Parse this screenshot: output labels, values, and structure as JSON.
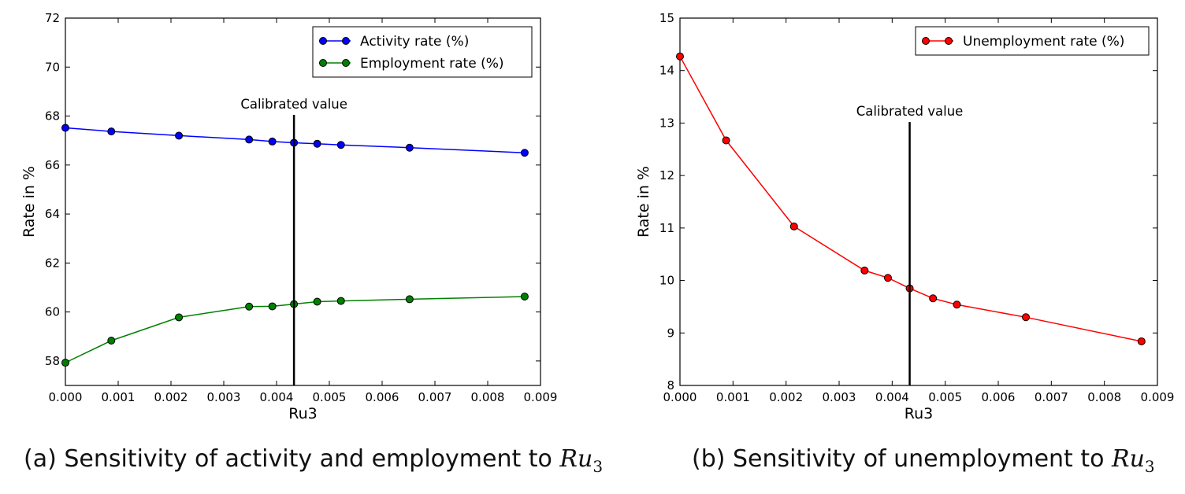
{
  "chart_data": [
    {
      "type": "line",
      "xlabel": "Ru3",
      "ylabel": "Rate in %",
      "xlim": [
        0,
        0.009
      ],
      "ylim": [
        57,
        72
      ],
      "xticks": [
        "0.000",
        "0.001",
        "0.002",
        "0.003",
        "0.004",
        "0.005",
        "0.006",
        "0.007",
        "0.008",
        "0.009"
      ],
      "yticks": [
        "58",
        "60",
        "62",
        "64",
        "66",
        "68",
        "70",
        "72"
      ],
      "legend_position": "top-right",
      "grid": false,
      "annotation": {
        "text": "Calibrated value",
        "x": 0.00433,
        "y_from": 57,
        "y_to": 68.05
      },
      "caption": {
        "prefix": "(a) Sensitivity of activity and employment to ",
        "math": "Ru",
        "sub": "3"
      },
      "series": [
        {
          "name": "Activity rate (%)",
          "color": "#0000ff",
          "x": [
            0,
            0.00087,
            0.00215,
            0.00348,
            0.00392,
            0.00433,
            0.00477,
            0.00522,
            0.00652,
            0.0087
          ],
          "values": [
            67.52,
            67.37,
            67.2,
            67.04,
            66.96,
            66.91,
            66.87,
            66.82,
            66.71,
            66.5
          ]
        },
        {
          "name": "Employment rate (%)",
          "color": "#008000",
          "x": [
            0,
            0.00087,
            0.00215,
            0.00348,
            0.00392,
            0.00433,
            0.00477,
            0.00522,
            0.00652,
            0.0087
          ],
          "values": [
            57.93,
            58.83,
            59.78,
            60.22,
            60.23,
            60.32,
            60.42,
            60.45,
            60.52,
            60.63
          ]
        }
      ]
    },
    {
      "type": "line",
      "xlabel": "Ru3",
      "ylabel": "Rate in %",
      "xlim": [
        0,
        0.009
      ],
      "ylim": [
        8,
        15
      ],
      "xticks": [
        "0.000",
        "0.001",
        "0.002",
        "0.003",
        "0.004",
        "0.005",
        "0.006",
        "0.007",
        "0.008",
        "0.009"
      ],
      "yticks": [
        "8",
        "9",
        "10",
        "11",
        "12",
        "13",
        "14",
        "15"
      ],
      "legend_position": "top-right",
      "grid": false,
      "annotation": {
        "text": "Calibrated value",
        "x": 0.00433,
        "y_from": 8,
        "y_to": 13.02
      },
      "caption": {
        "prefix": "(b) Sensitivity of unemployment to ",
        "math": "Ru",
        "sub": "3"
      },
      "series": [
        {
          "name": "Unemployment rate (%)",
          "color": "#ff0000",
          "x": [
            0,
            0.00087,
            0.00215,
            0.00348,
            0.00392,
            0.00433,
            0.00477,
            0.00522,
            0.00652,
            0.0087
          ],
          "values": [
            14.27,
            12.67,
            11.03,
            10.19,
            10.05,
            9.85,
            9.66,
            9.54,
            9.3,
            8.84
          ]
        }
      ]
    }
  ]
}
